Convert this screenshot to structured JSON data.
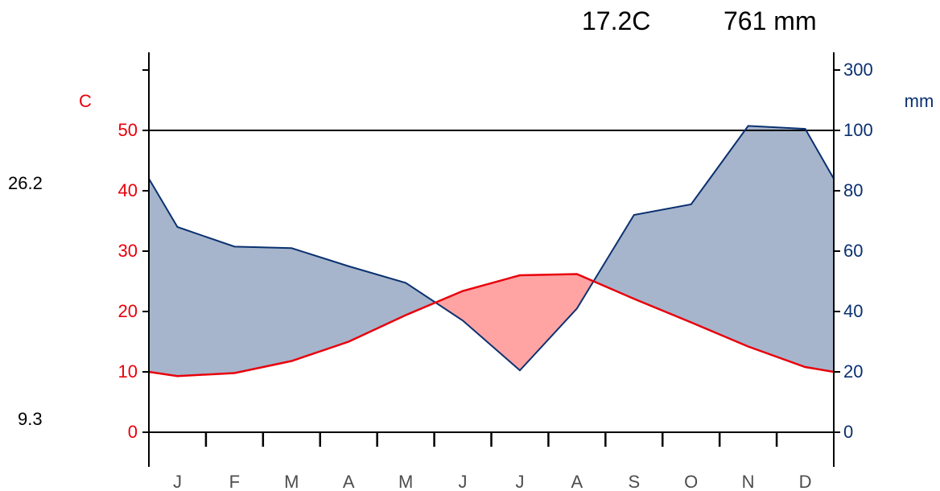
{
  "header": {
    "mean_temp": "17.2C",
    "annual_precip": "761 mm"
  },
  "side_labels": {
    "max_temp": "26.2",
    "min_temp": "9.3"
  },
  "colors": {
    "temperature": "#e8000b",
    "precipitation": "#0a3070",
    "precip_fill": "#a6b5cc",
    "temp_fill": "#ffa3a3"
  },
  "chart_data": {
    "type": "line",
    "months": [
      "J",
      "F",
      "M",
      "A",
      "M",
      "J",
      "J",
      "A",
      "S",
      "O",
      "N",
      "D"
    ],
    "x": [
      0.5,
      1.5,
      2.5,
      3.5,
      4.5,
      5.5,
      6.5,
      7.5,
      8.5,
      9.5,
      10.5,
      11.5
    ],
    "temperature": {
      "name": "C",
      "axis_label": "C",
      "ylim": [
        0,
        50
      ],
      "ticks": [
        0,
        10,
        20,
        30,
        40,
        50
      ],
      "values": [
        9.3,
        9.8,
        11.8,
        15.0,
        19.4,
        23.4,
        26.0,
        26.2,
        22.1,
        18.2,
        14.2,
        10.8
      ],
      "edge_values": [
        10.0,
        10.0
      ]
    },
    "precipitation": {
      "name": "mm",
      "axis_label": "mm",
      "ylim": [
        0,
        300
      ],
      "ticks": [
        0,
        20,
        40,
        60,
        80,
        100,
        300
      ],
      "values": [
        68,
        61.5,
        61,
        55,
        49.5,
        37,
        20.5,
        41,
        72,
        75.5,
        101.5,
        100.5
      ],
      "edge_values": [
        84,
        84
      ]
    },
    "reference_line": 50,
    "grid": false
  }
}
